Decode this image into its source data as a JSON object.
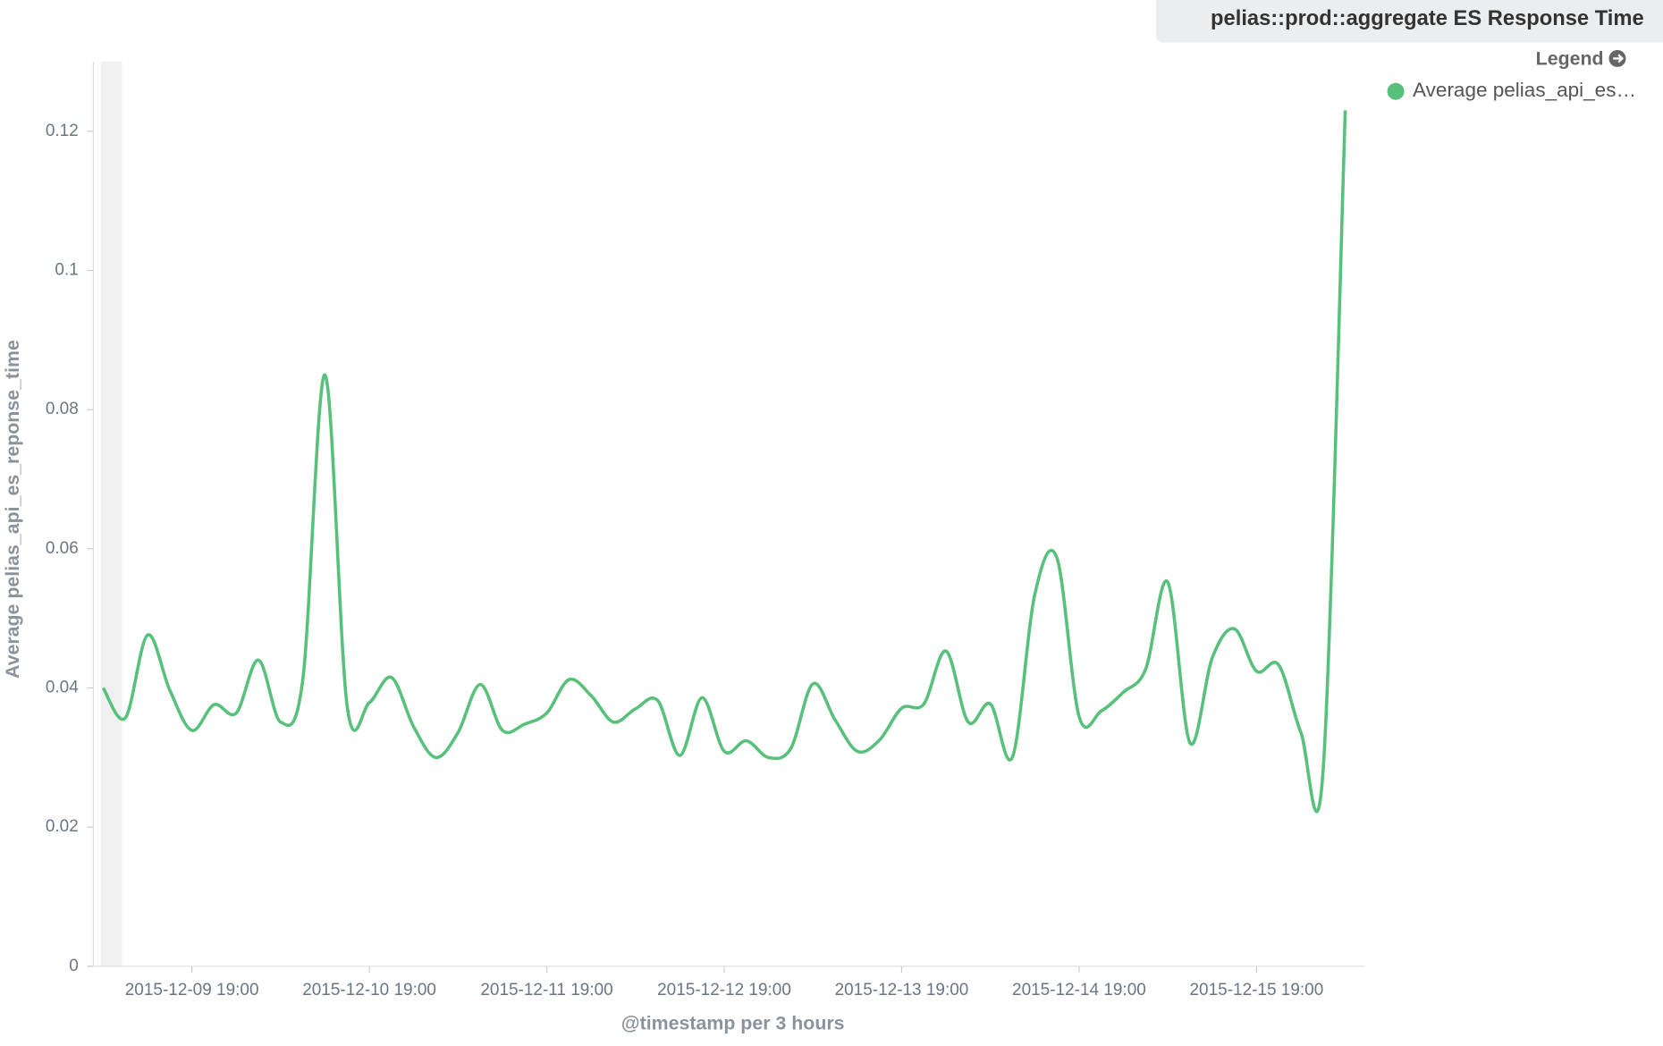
{
  "chart_data": {
    "type": "line",
    "title": "pelias::prod::aggregate ES Response Time",
    "legend_title": "Legend",
    "x_label": "@timestamp per 3 hours",
    "y_label": "Average pelias_api_es_reponse_time",
    "x": [
      "2015-12-09 07:00",
      "2015-12-09 10:00",
      "2015-12-09 13:00",
      "2015-12-09 16:00",
      "2015-12-09 19:00",
      "2015-12-09 22:00",
      "2015-12-10 01:00",
      "2015-12-10 04:00",
      "2015-12-10 07:00",
      "2015-12-10 10:00",
      "2015-12-10 13:00",
      "2015-12-10 16:00",
      "2015-12-10 19:00",
      "2015-12-10 22:00",
      "2015-12-11 01:00",
      "2015-12-11 04:00",
      "2015-12-11 07:00",
      "2015-12-11 10:00",
      "2015-12-11 13:00",
      "2015-12-11 16:00",
      "2015-12-11 19:00",
      "2015-12-11 22:00",
      "2015-12-12 01:00",
      "2015-12-12 04:00",
      "2015-12-12 07:00",
      "2015-12-12 10:00",
      "2015-12-12 13:00",
      "2015-12-12 16:00",
      "2015-12-12 19:00",
      "2015-12-12 22:00",
      "2015-12-13 01:00",
      "2015-12-13 04:00",
      "2015-12-13 07:00",
      "2015-12-13 10:00",
      "2015-12-13 13:00",
      "2015-12-13 16:00",
      "2015-12-13 19:00",
      "2015-12-13 22:00",
      "2015-12-14 01:00",
      "2015-12-14 04:00",
      "2015-12-14 07:00",
      "2015-12-14 10:00",
      "2015-12-14 13:00",
      "2015-12-14 16:00",
      "2015-12-14 19:00",
      "2015-12-14 22:00",
      "2015-12-15 01:00",
      "2015-12-15 04:00",
      "2015-12-15 07:00",
      "2015-12-15 10:00",
      "2015-12-15 13:00",
      "2015-12-15 16:00",
      "2015-12-15 19:00",
      "2015-12-15 22:00",
      "2015-12-16 01:00",
      "2015-12-16 04:00",
      "2015-12-16 07:00"
    ],
    "series": [
      {
        "name": "Average pelias_api_es…",
        "color": "#57c17b",
        "values": [
          0.04,
          0.0357,
          0.0476,
          0.0397,
          0.0339,
          0.0376,
          0.0364,
          0.044,
          0.0351,
          0.0412,
          0.085,
          0.0374,
          0.0379,
          0.0415,
          0.0344,
          0.03,
          0.0336,
          0.0405,
          0.0339,
          0.0348,
          0.0364,
          0.0412,
          0.0389,
          0.0351,
          0.037,
          0.0382,
          0.0303,
          0.0386,
          0.0309,
          0.0324,
          0.03,
          0.0313,
          0.0406,
          0.0354,
          0.0309,
          0.0325,
          0.0371,
          0.0377,
          0.0453,
          0.0351,
          0.0377,
          0.0301,
          0.0534,
          0.0587,
          0.0359,
          0.0367,
          0.0394,
          0.0427,
          0.0552,
          0.0321,
          0.0443,
          0.0485,
          0.0424,
          0.0433,
          0.0336,
          0.0281,
          0.123
        ]
      }
    ],
    "xlim": [
      "2015-12-09 05:40",
      "2015-12-16 09:40"
    ],
    "xticks": [
      "2015-12-09 19:00",
      "2015-12-10 19:00",
      "2015-12-11 19:00",
      "2015-12-12 19:00",
      "2015-12-13 19:00",
      "2015-12-14 19:00",
      "2015-12-15 19:00"
    ],
    "ylim": [
      0,
      0.13
    ],
    "yticks": [
      0,
      0.02,
      0.04,
      0.06,
      0.08,
      0.1,
      0.12
    ]
  }
}
